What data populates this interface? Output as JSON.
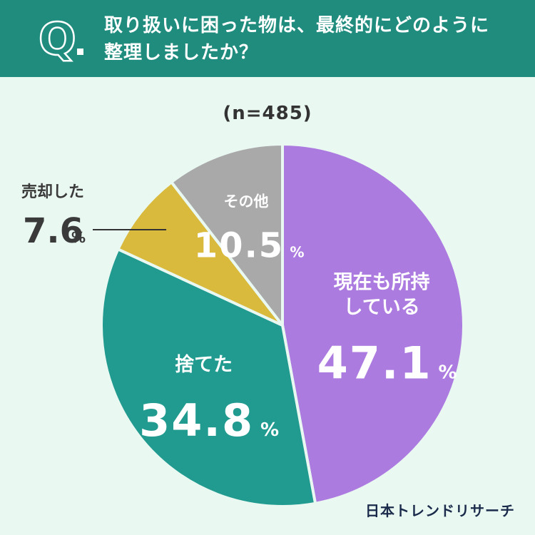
{
  "header": {
    "badge_letter": "Q",
    "question_line1": "取り扱いに困った物は、最終的にどのように",
    "question_line2": "整理しましたか？"
  },
  "sample_size_label": "(n=485)",
  "brand": "日本トレンドリサーチ",
  "colors": {
    "header_bg": "#1f8c7e",
    "background": "#eaf8f2"
  },
  "chart_data": {
    "type": "pie",
    "title": "取り扱いに困った物は、最終的にどのように整理しましたか？",
    "sample_size": 485,
    "start": "12 o'clock",
    "direction": "clockwise",
    "slices": [
      {
        "label_lines": [
          "現在も所持",
          "している"
        ],
        "value": 47.1,
        "display": "47.1",
        "color": "#ac7be0",
        "label_color": "#ffffff",
        "label_position": "inside"
      },
      {
        "label_lines": [
          "捨てた"
        ],
        "value": 34.8,
        "display": "34.8",
        "color": "#219b90",
        "label_color": "#ffffff",
        "label_position": "inside"
      },
      {
        "label_lines": [
          "売却した"
        ],
        "value": 7.6,
        "display": "7.6",
        "color": "#d9ba3c",
        "label_color": "#3a3a3a",
        "label_position": "outside-left"
      },
      {
        "label_lines": [
          "その他"
        ],
        "value": 10.5,
        "display": "10.5",
        "color": "#a9a9a9",
        "label_color": "#ffffff",
        "label_position": "inside"
      }
    ],
    "unit": "%"
  }
}
